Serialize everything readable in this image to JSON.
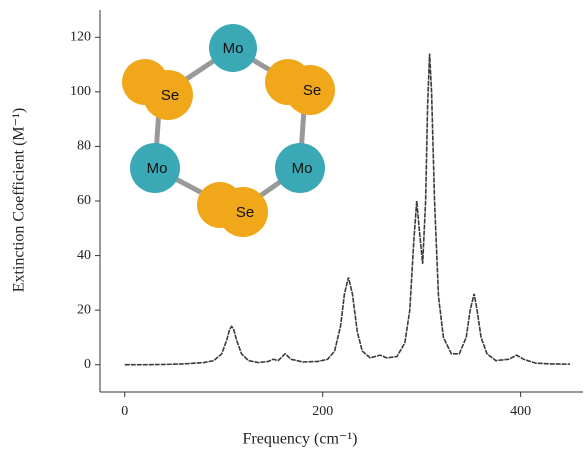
{
  "chart_data": {
    "type": "line",
    "xlabel": "Frequency (cm⁻¹)",
    "ylabel": "Extinction Coefficient (M⁻¹)",
    "x": [
      0,
      20,
      40,
      60,
      80,
      90,
      98,
      103,
      106,
      108,
      110,
      113,
      118,
      125,
      135,
      145,
      150,
      155,
      162,
      168,
      180,
      195,
      205,
      212,
      218,
      222,
      226,
      230,
      235,
      240,
      248,
      258,
      265,
      275,
      283,
      288,
      292,
      295,
      298,
      301,
      304,
      306,
      308,
      310,
      313,
      317,
      322,
      330,
      338,
      345,
      349,
      353,
      356,
      360,
      366,
      375,
      388,
      396,
      403,
      415,
      430,
      450
    ],
    "values": [
      0,
      0,
      0.1,
      0.3,
      0.8,
      1.5,
      4,
      9,
      13,
      14,
      13,
      9,
      4,
      1.5,
      0.8,
      1.2,
      2,
      1.5,
      4,
      2,
      1,
      1.2,
      2,
      5,
      14,
      26,
      32,
      26,
      12,
      5,
      2.5,
      3.5,
      2.5,
      3,
      8,
      20,
      45,
      60,
      48,
      37,
      60,
      95,
      114,
      100,
      60,
      25,
      10,
      4,
      4,
      10,
      20,
      26,
      20,
      10,
      4,
      1.5,
      2,
      3.5,
      2,
      0.6,
      0.3,
      0.2
    ],
    "color": "#3a3a3a",
    "xlim": [
      -25,
      463
    ],
    "ylim": [
      -10,
      130
    ],
    "xticks": [
      0,
      200,
      400
    ],
    "yticks": [
      0,
      20,
      40,
      60,
      80,
      100,
      120
    ],
    "annotations": [
      "Mo",
      "Mo",
      "Mo",
      "Se",
      "Se",
      "Se"
    ]
  }
}
